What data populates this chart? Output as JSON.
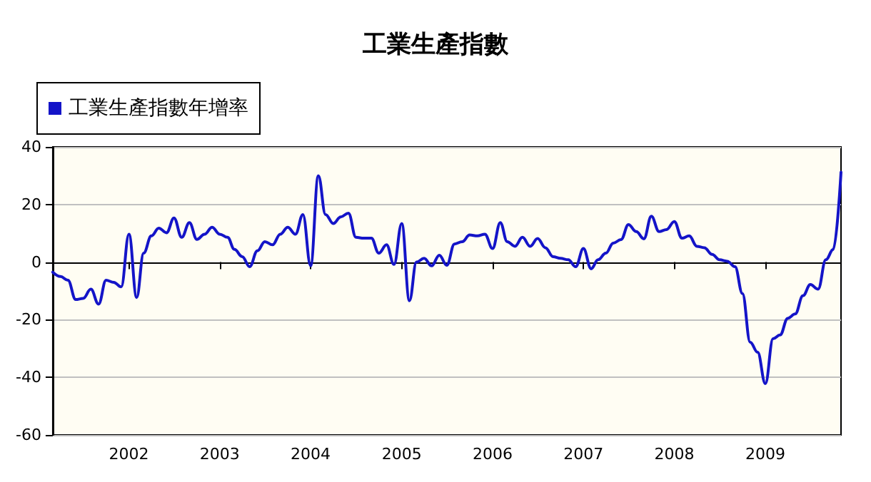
{
  "chart_data": {
    "type": "line",
    "title": "工業生產指數",
    "x": [
      "2001-03",
      "2001-04",
      "2001-05",
      "2001-06",
      "2001-07",
      "2001-08",
      "2001-09",
      "2001-10",
      "2001-11",
      "2001-12",
      "2002-01",
      "2002-02",
      "2002-03",
      "2002-04",
      "2002-05",
      "2002-06",
      "2002-07",
      "2002-08",
      "2002-09",
      "2002-10",
      "2002-11",
      "2002-12",
      "2003-01",
      "2003-02",
      "2003-03",
      "2003-04",
      "2003-05",
      "2003-06",
      "2003-07",
      "2003-08",
      "2003-09",
      "2003-10",
      "2003-11",
      "2003-12",
      "2004-01",
      "2004-02",
      "2004-03",
      "2004-04",
      "2004-05",
      "2004-06",
      "2004-07",
      "2004-08",
      "2004-09",
      "2004-10",
      "2004-11",
      "2004-12",
      "2005-01",
      "2005-02",
      "2005-03",
      "2005-04",
      "2005-05",
      "2005-06",
      "2005-07",
      "2005-08",
      "2005-09",
      "2005-10",
      "2005-11",
      "2005-12",
      "2006-01",
      "2006-02",
      "2006-03",
      "2006-04",
      "2006-05",
      "2006-06",
      "2006-07",
      "2006-08",
      "2006-09",
      "2006-10",
      "2006-11",
      "2006-12",
      "2007-01",
      "2007-02",
      "2007-03",
      "2007-04",
      "2007-05",
      "2007-06",
      "2007-07",
      "2007-08",
      "2007-09",
      "2007-10",
      "2007-11",
      "2007-12",
      "2008-01",
      "2008-02",
      "2008-03",
      "2008-04",
      "2008-05",
      "2008-06",
      "2008-07",
      "2008-08",
      "2008-09",
      "2008-10",
      "2008-11",
      "2008-12",
      "2009-01",
      "2009-02",
      "2009-03",
      "2009-04",
      "2009-05",
      "2009-06",
      "2009-07",
      "2009-08",
      "2009-09",
      "2009-10",
      "2009-11"
    ],
    "series": [
      {
        "name": "工業生產指數年增率",
        "color": "#1414c8",
        "values": [
          -3.5,
          -5,
          -6.3,
          -13,
          -12.6,
          -9.4,
          -14.6,
          -6.3,
          -7,
          -8.6,
          9.7,
          -12.3,
          3.1,
          9.1,
          11.8,
          10.2,
          15.3,
          8.6,
          13.7,
          7.9,
          9.7,
          12.1,
          9.7,
          8.6,
          4.4,
          1.9,
          -1.6,
          3.9,
          7.1,
          6,
          9.7,
          12.1,
          9.7,
          16.5,
          -1.3,
          30,
          16.5,
          13.4,
          15.7,
          17,
          8.6,
          8.3,
          8.3,
          3.1,
          6,
          -0.8,
          13.4,
          -13.4,
          0,
          1.3,
          -1.3,
          2.4,
          -1.1,
          6.3,
          7.1,
          9.4,
          9.1,
          9.7,
          4.7,
          13.7,
          7.1,
          5.5,
          8.6,
          5.5,
          8.2,
          5,
          1.9,
          1.3,
          0.8,
          -1.6,
          4.7,
          -2.3,
          0.8,
          3.1,
          6.6,
          7.8,
          13,
          10.6,
          8.1,
          15.9,
          10.6,
          11.3,
          14.1,
          8.3,
          9.1,
          5.5,
          5,
          2.7,
          0.8,
          0.3,
          -1.6,
          -10.9,
          -27.8,
          -31.3,
          -42.2,
          -26.6,
          -25.3,
          -19.5,
          -18,
          -11.7,
          -7.8,
          -9.4,
          0.8,
          4.4,
          31.2
        ]
      }
    ],
    "xlim": [
      "2001-03",
      "2009-11"
    ],
    "xticks": [
      {
        "value": "2002-01",
        "label": "2002"
      },
      {
        "value": "2003-01",
        "label": "2003"
      },
      {
        "value": "2004-01",
        "label": "2004"
      },
      {
        "value": "2005-01",
        "label": "2005"
      },
      {
        "value": "2006-01",
        "label": "2006"
      },
      {
        "value": "2007-01",
        "label": "2007"
      },
      {
        "value": "2008-01",
        "label": "2008"
      },
      {
        "value": "2009-01",
        "label": "2009"
      }
    ],
    "ylim": [
      -60,
      40
    ],
    "yticks": [
      -60,
      -40,
      -20,
      0,
      20,
      40
    ],
    "grid": "y",
    "legend": "top left",
    "marker": "none",
    "line_style": "solid"
  }
}
